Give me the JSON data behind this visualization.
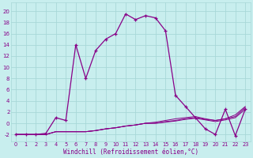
{
  "xlabel": "Windchill (Refroidissement éolien,°C)",
  "bg_color": "#c8eeee",
  "grid_color": "#a8d8d8",
  "line_color": "#880088",
  "x_ticks": [
    0,
    1,
    2,
    3,
    4,
    5,
    6,
    7,
    8,
    9,
    10,
    11,
    12,
    13,
    14,
    15,
    16,
    17,
    18,
    19,
    20,
    21,
    22,
    23
  ],
  "y_ticks": [
    -2,
    0,
    2,
    4,
    6,
    8,
    10,
    12,
    14,
    16,
    18,
    20
  ],
  "xlim": [
    -0.5,
    23.5
  ],
  "ylim": [
    -3.2,
    21.5
  ],
  "series": [
    [
      -2,
      -2,
      -2,
      -1.8,
      1.0,
      0.5,
      14,
      8,
      13,
      15,
      16,
      19.5,
      18.5,
      19.2,
      18.8,
      16.5,
      5,
      3,
      1,
      -1,
      -2,
      2.5,
      -2.2,
      2.5
    ],
    [
      -2,
      -2,
      -2,
      -2,
      -1.5,
      -1.5,
      -1.5,
      -1.5,
      -1.3,
      -1,
      -0.8,
      -0.5,
      -0.3,
      0,
      0.2,
      0.5,
      0.8,
      1.0,
      1.2,
      0.8,
      0.5,
      0.8,
      1.5,
      3.0
    ],
    [
      -2,
      -2,
      -2,
      -2,
      -1.5,
      -1.5,
      -1.5,
      -1.5,
      -1.3,
      -1,
      -0.8,
      -0.5,
      -0.3,
      0,
      0,
      0.3,
      0.5,
      0.8,
      1.0,
      0.7,
      0.5,
      0.8,
      1.2,
      2.8
    ],
    [
      -2,
      -2,
      -2,
      -2,
      -1.5,
      -1.5,
      -1.5,
      -1.5,
      -1.3,
      -1,
      -0.8,
      -0.5,
      -0.3,
      0,
      0,
      0.2,
      0.4,
      0.7,
      0.9,
      0.6,
      0.3,
      0.6,
      1.0,
      2.5
    ]
  ]
}
